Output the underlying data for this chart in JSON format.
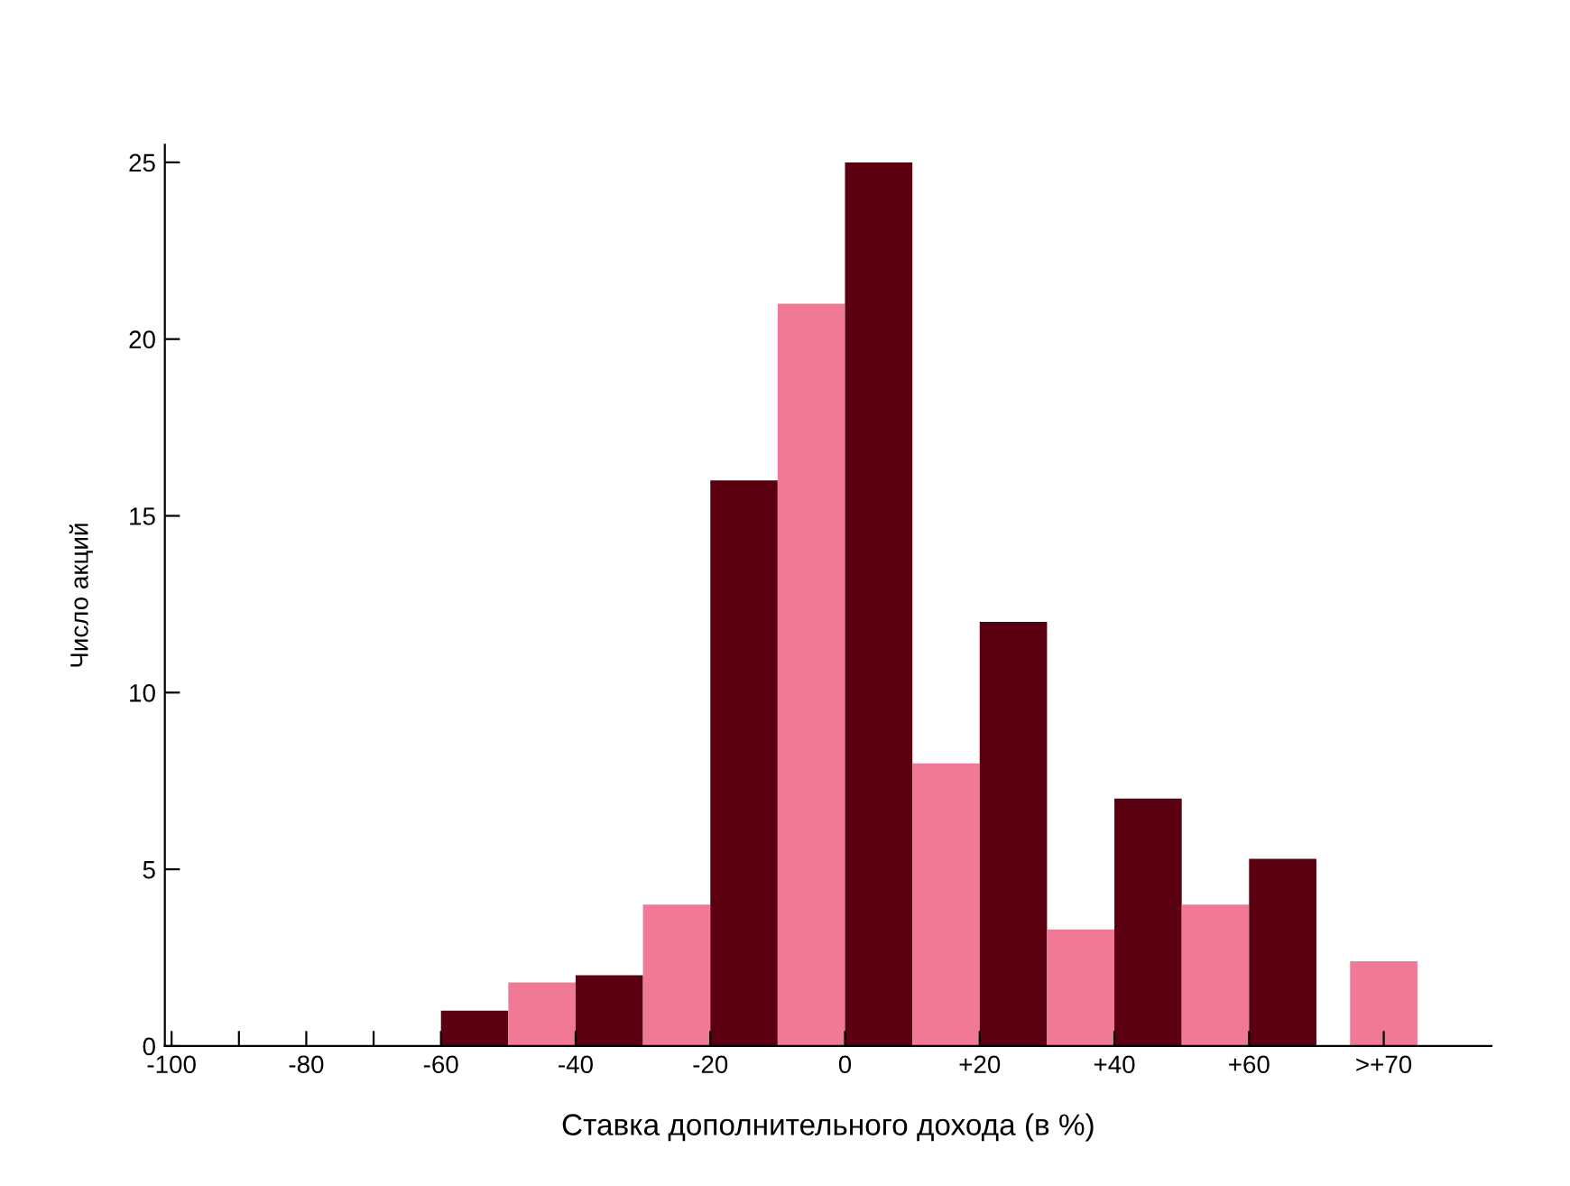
{
  "chart_data": {
    "type": "histogram",
    "xlabel": "Ставка дополнительного дохода (в %)",
    "ylabel": "Число акций",
    "bins": [
      -60,
      -50,
      -40,
      -30,
      -20,
      -10,
      0,
      10,
      20,
      30,
      40,
      50,
      60,
      70,
      75,
      85
    ],
    "values": [
      1,
      1.8,
      2,
      4,
      16,
      21,
      25,
      8,
      12,
      3.3,
      7,
      4,
      5.3,
      null,
      2.4
    ],
    "colors": [
      "#5a0010",
      "#f07a95",
      "#5a0010",
      "#f07a95",
      "#5a0010",
      "#f07a95",
      "#5a0010",
      "#f07a95",
      "#5a0010",
      "#f07a95",
      "#5a0010",
      "#f07a95",
      "#5a0010",
      "#f07a95",
      "#f07a95"
    ],
    "xlim": [
      -101,
      96
    ],
    "ylim": [
      0,
      25.5
    ],
    "xticks": [
      {
        "value": -100,
        "label": "-100"
      },
      {
        "value": -90,
        "label": null
      },
      {
        "value": -80,
        "label": "-80"
      },
      {
        "value": -70,
        "label": null
      },
      {
        "value": -60,
        "label": "-60"
      },
      {
        "value": -40,
        "label": "-40"
      },
      {
        "value": -20,
        "label": "-20"
      },
      {
        "value": 0,
        "label": "0"
      },
      {
        "value": 20,
        "label": "+20"
      },
      {
        "value": 40,
        "label": "+40"
      },
      {
        "value": 60,
        "label": "+60"
      },
      {
        "value": 80,
        "label": ">+70"
      }
    ],
    "yticks": [
      0,
      5,
      10,
      15,
      20,
      25
    ]
  }
}
